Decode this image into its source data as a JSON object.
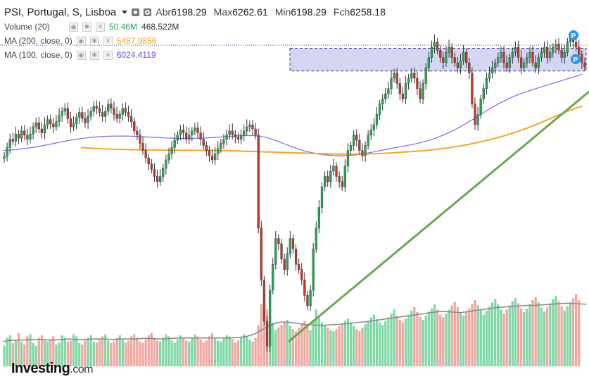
{
  "header": {
    "symbol": "PSI, Portugal, S, Lisboa",
    "ohlc": [
      {
        "label": "Abr",
        "value": "6198.29"
      },
      {
        "label": "Max",
        "value": "6262.61"
      },
      {
        "label": "Min",
        "value": "6198.29"
      },
      {
        "label": "Fch",
        "value": "6258.18"
      }
    ]
  },
  "indicators": [
    {
      "name": "Volume (20)",
      "values": [
        "50.46M",
        "468.522M"
      ],
      "colors": [
        "#26a65b",
        "#333333"
      ]
    },
    {
      "name": "MA (200, close, 0)",
      "values": [
        "5487.9856"
      ],
      "colors": [
        "#f5a623"
      ]
    },
    {
      "name": "MA (100, close, 0)",
      "values": [
        "6024.4119"
      ],
      "colors": [
        "#6a4fd8"
      ]
    }
  ],
  "logo": {
    "brand": "Investing",
    "suffix": ".com"
  },
  "markers": [
    "P",
    "P"
  ],
  "chart_data": {
    "type": "candlestick",
    "price_range": [
      3500,
      6600
    ],
    "current_price": 6258.18,
    "colors": {
      "up": "#26a65b",
      "down": "#c0392b",
      "ma200": "#f5a623",
      "ma100": "#7b68ee",
      "trendline": "#6aa84f",
      "zone": "#c5c8ee",
      "marker": "#2196f3"
    },
    "close_series": [
      5395,
      5480,
      5560,
      5540,
      5610,
      5570,
      5640,
      5600,
      5560,
      5610,
      5680,
      5720,
      5660,
      5620,
      5700,
      5750,
      5710,
      5680,
      5730,
      5790,
      5830,
      5860,
      5760,
      5680,
      5710,
      5770,
      5820,
      5760,
      5720,
      5780,
      5830,
      5880,
      5860,
      5820,
      5780,
      5830,
      5900,
      5860,
      5800,
      5760,
      5800,
      5860,
      5820,
      5780,
      5730,
      5640,
      5600,
      5520,
      5450,
      5380,
      5320,
      5270,
      5200,
      5150,
      5200,
      5280,
      5360,
      5420,
      5480,
      5550,
      5600,
      5650,
      5620,
      5560,
      5600,
      5640,
      5670,
      5620,
      5560,
      5500,
      5450,
      5400,
      5360,
      5420,
      5470,
      5520,
      5560,
      5600,
      5640,
      5610,
      5580,
      5560,
      5600,
      5640,
      5680,
      5700,
      5660,
      5600,
      4700,
      4200,
      3800,
      3560,
      4100,
      4350,
      4600,
      4550,
      4400,
      4300,
      4450,
      4600,
      4500,
      4350,
      4300,
      4200,
      4050,
      3950,
      4100,
      4500,
      4700,
      4900,
      5100,
      5200,
      5150,
      5250,
      5300,
      5200,
      5150,
      5100,
      5300,
      5450,
      5500,
      5600,
      5550,
      5450,
      5400,
      5500,
      5600,
      5650,
      5700,
      5800,
      5900,
      5950,
      6000,
      6050,
      6150,
      6200,
      6100,
      6000,
      5950,
      6100,
      6150,
      6200,
      6150,
      6050,
      5950,
      6100,
      6250,
      6350,
      6450,
      6500,
      6420,
      6350,
      6300,
      6400,
      6450,
      6350,
      6300,
      6250,
      6320,
      6400,
      6300,
      6200,
      5900,
      5700,
      5800,
      5950,
      6050,
      6150,
      6200,
      6250,
      6300,
      6350,
      6400,
      6300,
      6250,
      6350,
      6400,
      6450,
      6350,
      6250,
      6300,
      6350,
      6400,
      6300,
      6250,
      6350,
      6400,
      6450,
      6350,
      6400,
      6450,
      6480,
      6420,
      6350,
      6400,
      6500,
      6550,
      6500,
      6450,
      6380,
      6300,
      6258
    ],
    "ma200": [
      5480,
      5476,
      5472,
      5468,
      5466,
      5464,
      5462,
      5460,
      5459,
      5458,
      5457,
      5456,
      5455,
      5455,
      5454,
      5454,
      5453,
      5453,
      5452,
      5452,
      5452,
      5452,
      5451,
      5450,
      5448,
      5446,
      5444,
      5442,
      5440,
      5438,
      5436,
      5434,
      5432,
      5430,
      5428,
      5426,
      5424,
      5422,
      5420,
      5418,
      5417,
      5416,
      5416,
      5416,
      5417,
      5418,
      5420,
      5422,
      5425,
      5428,
      5432,
      5436,
      5440,
      5445,
      5450,
      5456,
      5462,
      5470,
      5478,
      5488,
      5498,
      5510,
      5522,
      5536,
      5550,
      5566,
      5582,
      5600,
      5620,
      5640,
      5662,
      5685,
      5710,
      5736,
      5762,
      5790,
      5815,
      5840,
      5862,
      5880
    ],
    "ma100": [
      5450,
      5455,
      5462,
      5470,
      5480,
      5492,
      5505,
      5520,
      5535,
      5548,
      5560,
      5570,
      5578,
      5584,
      5588,
      5590,
      5591,
      5590,
      5588,
      5585,
      5581,
      5577,
      5573,
      5570,
      5568,
      5567,
      5568,
      5570,
      5574,
      5578,
      5583,
      5588,
      5592,
      5595,
      5595,
      5590,
      5575,
      5552,
      5525,
      5498,
      5472,
      5450,
      5432,
      5418,
      5408,
      5402,
      5400,
      5402,
      5408,
      5418,
      5430,
      5444,
      5458,
      5472,
      5485,
      5498,
      5512,
      5528,
      5548,
      5572,
      5600,
      5632,
      5668,
      5708,
      5750,
      5795,
      5840,
      5882,
      5920,
      5955,
      5985,
      6012,
      6036,
      6058,
      6080,
      6102,
      6124,
      6146,
      6168,
      6190
    ],
    "volume_series": [
      40,
      55,
      60,
      45,
      50,
      65,
      48,
      42,
      58,
      62,
      45,
      40,
      55,
      60,
      50,
      48,
      52,
      58,
      42,
      46,
      60,
      55,
      48,
      50,
      62,
      58,
      45,
      42,
      50,
      55,
      60,
      48,
      46,
      52,
      58,
      62,
      50,
      45,
      48,
      55,
      60,
      52,
      46,
      50,
      58,
      62,
      55,
      48,
      45,
      52,
      60,
      65,
      55,
      50,
      48,
      56,
      62,
      58,
      50,
      46,
      52,
      60,
      56,
      50,
      48,
      55,
      62,
      58,
      52,
      46,
      50,
      58,
      64,
      56,
      50,
      48,
      55,
      60,
      58,
      52,
      46,
      50,
      56,
      62,
      58,
      52,
      48,
      55,
      80,
      120,
      140,
      110,
      90,
      85,
      70,
      75,
      80,
      85,
      90,
      78,
      72,
      68,
      75,
      82,
      88,
      76,
      70,
      90,
      110,
      95,
      85,
      80,
      75,
      70,
      68,
      72,
      78,
      82,
      88,
      92,
      85,
      78,
      72,
      68,
      75,
      82,
      88,
      95,
      100,
      92,
      85,
      80,
      88,
      95,
      102,
      110,
      98,
      90,
      85,
      92,
      100,
      108,
      115,
      105,
      96,
      90,
      98,
      106,
      112,
      120,
      110,
      100,
      95,
      102,
      110,
      118,
      125,
      115,
      105,
      98,
      105,
      112,
      120,
      128,
      118,
      108,
      100,
      108,
      116,
      124,
      130,
      120,
      110,
      102,
      110,
      118,
      126,
      132,
      122,
      112,
      105,
      112,
      120,
      128,
      134,
      124,
      114,
      106,
      114,
      122,
      130,
      136,
      126,
      116,
      108,
      116,
      124,
      132,
      140,
      128
    ],
    "volume_ma": [
      48,
      50,
      51,
      51,
      52,
      52,
      51,
      51,
      52,
      53,
      52,
      52,
      53,
      53,
      53,
      52,
      53,
      53,
      53,
      54,
      54,
      53,
      53,
      54,
      55,
      55,
      55,
      55,
      55,
      55,
      55,
      55,
      56,
      58,
      62,
      70,
      78,
      84,
      86,
      85,
      83,
      81,
      80,
      79,
      80,
      81,
      82,
      83,
      85,
      86,
      88,
      90,
      92,
      94,
      96,
      98,
      100,
      102,
      104,
      106,
      106,
      105,
      104,
      106,
      108,
      110,
      112,
      114,
      115,
      116,
      117,
      118,
      118,
      119,
      120,
      121,
      122,
      122,
      121,
      120
    ]
  }
}
